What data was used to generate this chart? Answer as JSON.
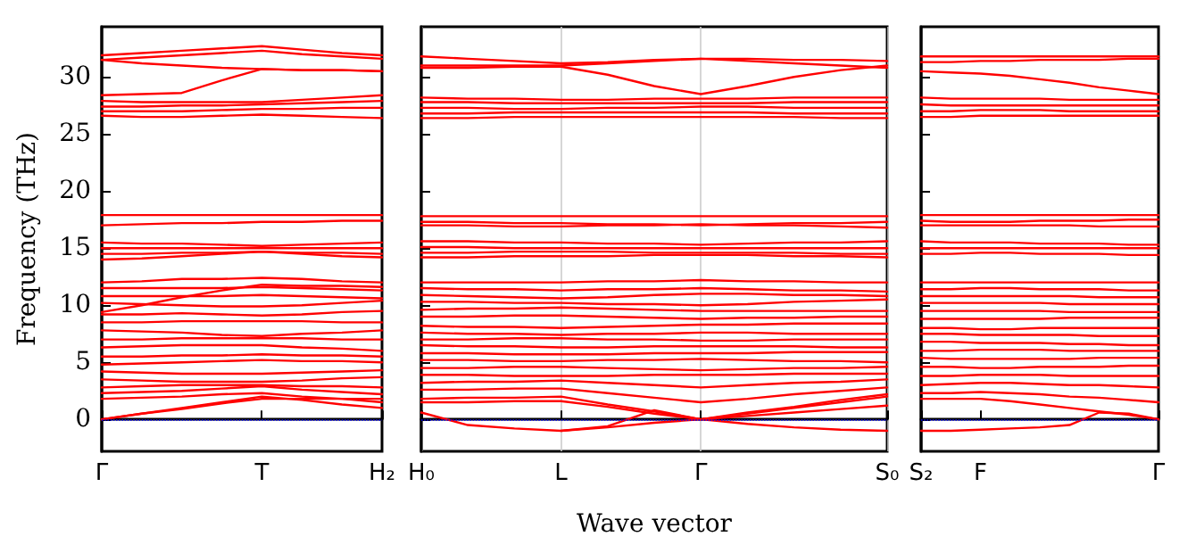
{
  "chart_data": [
    {
      "type": "line",
      "ylabel": "Frequency (THz)",
      "categories": [
        "Γ",
        null,
        null,
        null,
        "T",
        null,
        null,
        "H₂"
      ],
      "ylim": [
        -2.8,
        34.4
      ],
      "yticks": [
        0,
        5,
        10,
        15,
        20,
        25,
        30
      ],
      "marker": "none",
      "line_style": "solid",
      "ref_lines": [
        {
          "axis": "y",
          "value": 0,
          "color": "#0000ff",
          "line_style": "dotted"
        }
      ],
      "series": [
        {
          "color": "#ff0000",
          "values": [
            31.9,
            32.1,
            32.3,
            32.5,
            32.7,
            32.4,
            32.1,
            31.9
          ]
        },
        {
          "color": "#ff0000",
          "values": [
            31.5,
            31.7,
            31.9,
            32.1,
            32.3,
            32.0,
            31.8,
            31.6
          ]
        },
        {
          "color": "#ff0000",
          "values": [
            31.5,
            31.2,
            31.0,
            30.8,
            30.7,
            30.6,
            30.6,
            30.5
          ]
        },
        {
          "color": "#ff0000",
          "values": [
            28.4,
            28.5,
            28.6,
            29.7,
            30.7,
            30.6,
            30.6,
            30.5
          ]
        },
        {
          "color": "#ff0000",
          "values": [
            27.9,
            27.8,
            27.8,
            27.8,
            27.8,
            28.0,
            28.2,
            28.4
          ]
        },
        {
          "color": "#ff0000",
          "values": [
            27.4,
            27.4,
            27.5,
            27.5,
            27.6,
            27.7,
            27.8,
            27.9
          ]
        },
        {
          "color": "#ff0000",
          "values": [
            27.0,
            27.0,
            27.0,
            27.1,
            27.2,
            27.2,
            27.3,
            27.3
          ]
        },
        {
          "color": "#ff0000",
          "values": [
            26.6,
            26.5,
            26.5,
            26.6,
            26.7,
            26.6,
            26.5,
            26.4
          ]
        },
        {
          "color": "#ff0000",
          "values": [
            17.9,
            17.9,
            17.9,
            17.9,
            17.9,
            17.9,
            17.9,
            17.9
          ]
        },
        {
          "color": "#ff0000",
          "values": [
            17.0,
            17.1,
            17.2,
            17.2,
            17.3,
            17.3,
            17.4,
            17.4
          ]
        },
        {
          "color": "#ff0000",
          "values": [
            15.5,
            15.4,
            15.4,
            15.3,
            15.2,
            15.3,
            15.4,
            15.5
          ]
        },
        {
          "color": "#ff0000",
          "values": [
            15.0,
            15.0,
            15.0,
            15.0,
            15.0,
            15.0,
            15.0,
            15.0
          ]
        },
        {
          "color": "#ff0000",
          "values": [
            14.5,
            14.5,
            14.6,
            14.6,
            14.7,
            14.6,
            14.6,
            14.5
          ]
        },
        {
          "color": "#ff0000",
          "values": [
            14.0,
            14.1,
            14.3,
            14.5,
            14.7,
            14.5,
            14.3,
            14.2
          ]
        },
        {
          "color": "#ff0000",
          "values": [
            12.0,
            12.1,
            12.3,
            12.3,
            12.4,
            12.3,
            12.1,
            12.0
          ]
        },
        {
          "color": "#ff0000",
          "values": [
            11.5,
            11.5,
            11.5,
            11.5,
            11.6,
            11.5,
            11.4,
            11.3
          ]
        },
        {
          "color": "#ff0000",
          "values": [
            10.8,
            10.8,
            10.8,
            10.8,
            10.9,
            10.8,
            10.7,
            10.6
          ]
        },
        {
          "color": "#ff0000",
          "values": [
            10.2,
            10.1,
            10.0,
            9.9,
            9.9,
            10.0,
            10.2,
            10.4
          ]
        },
        {
          "color": "#ff0000",
          "values": [
            9.4,
            10.0,
            10.7,
            11.3,
            11.8,
            11.7,
            11.7,
            11.6
          ]
        },
        {
          "color": "#ff0000",
          "values": [
            9.2,
            9.2,
            9.3,
            9.2,
            9.1,
            9.2,
            9.4,
            9.5
          ]
        },
        {
          "color": "#ff0000",
          "values": [
            8.5,
            8.5,
            8.6,
            8.6,
            8.6,
            8.6,
            8.5,
            8.5
          ]
        },
        {
          "color": "#ff0000",
          "values": [
            7.8,
            7.7,
            7.6,
            7.4,
            7.3,
            7.5,
            7.6,
            7.8
          ]
        },
        {
          "color": "#ff0000",
          "values": [
            7.0,
            7.0,
            7.1,
            7.1,
            7.1,
            7.1,
            7.0,
            7.0
          ]
        },
        {
          "color": "#ff0000",
          "values": [
            6.3,
            6.4,
            6.5,
            6.5,
            6.5,
            6.3,
            6.2,
            6.0
          ]
        },
        {
          "color": "#ff0000",
          "values": [
            5.5,
            5.5,
            5.6,
            5.6,
            5.7,
            5.6,
            5.6,
            5.5
          ]
        },
        {
          "color": "#ff0000",
          "values": [
            4.8,
            4.9,
            5.0,
            5.1,
            5.2,
            5.1,
            5.1,
            5.0
          ]
        },
        {
          "color": "#ff0000",
          "values": [
            4.2,
            4.1,
            4.0,
            4.0,
            4.0,
            4.1,
            4.2,
            4.3
          ]
        },
        {
          "color": "#ff0000",
          "values": [
            3.5,
            3.4,
            3.3,
            3.3,
            3.3,
            3.4,
            3.6,
            3.7
          ]
        },
        {
          "color": "#ff0000",
          "values": [
            2.8,
            2.9,
            3.0,
            3.0,
            3.0,
            2.9,
            2.9,
            2.8
          ]
        },
        {
          "color": "#ff0000",
          "values": [
            2.3,
            2.4,
            2.5,
            2.7,
            2.9,
            2.6,
            2.4,
            2.2
          ]
        },
        {
          "color": "#ff0000",
          "values": [
            1.8,
            1.9,
            2.0,
            2.2,
            2.3,
            2.0,
            1.8,
            1.5
          ]
        },
        {
          "color": "#ff0000",
          "values": [
            0.0,
            0.5,
            1.0,
            1.5,
            2.0,
            1.7,
            1.3,
            1.0
          ]
        },
        {
          "color": "#ff0000",
          "values": [
            0.0,
            0.5,
            0.9,
            1.4,
            1.8,
            1.8,
            1.8,
            1.8
          ]
        }
      ]
    },
    {
      "type": "line",
      "xlabel": "Wave vector",
      "categories": [
        "H₀",
        null,
        null,
        "L",
        null,
        null,
        "Γ",
        null,
        null,
        null,
        "S₀"
      ],
      "ylim": [
        -2.8,
        34.4
      ],
      "yticks": [
        0,
        5,
        10,
        15,
        20,
        25,
        30
      ],
      "tick_labels": "x",
      "grid": "x",
      "marker": "none",
      "line_style": "solid",
      "ref_lines": [
        {
          "axis": "y",
          "value": 0,
          "color": "#0000ff",
          "line_style": "dotted"
        }
      ],
      "series": [
        {
          "color": "#ff0000",
          "values": [
            31.8,
            31.6,
            31.4,
            31.2,
            31.3,
            31.5,
            31.6,
            31.4,
            31.2,
            31.0,
            30.8
          ]
        },
        {
          "color": "#ff0000",
          "values": [
            31.0,
            31.0,
            31.0,
            31.0,
            31.2,
            31.4,
            31.6,
            31.6,
            31.5,
            31.5,
            31.4
          ]
        },
        {
          "color": "#ff0000",
          "values": [
            30.8,
            30.8,
            30.9,
            30.9,
            30.2,
            29.2,
            28.5,
            29.2,
            30.0,
            30.6,
            31.0
          ]
        },
        {
          "color": "#ff0000",
          "values": [
            28.2,
            28.1,
            28.1,
            28.0,
            28.0,
            28.1,
            28.1,
            28.1,
            28.2,
            28.2,
            28.2
          ]
        },
        {
          "color": "#ff0000",
          "values": [
            27.8,
            27.8,
            27.7,
            27.7,
            27.7,
            27.7,
            27.7,
            27.7,
            27.8,
            27.8,
            27.8
          ]
        },
        {
          "color": "#ff0000",
          "values": [
            27.3,
            27.3,
            27.2,
            27.2,
            27.3,
            27.3,
            27.4,
            27.4,
            27.3,
            27.3,
            27.3
          ]
        },
        {
          "color": "#ff0000",
          "values": [
            26.8,
            26.8,
            26.9,
            26.9,
            26.9,
            26.9,
            26.9,
            26.9,
            26.8,
            26.8,
            26.8
          ]
        },
        {
          "color": "#ff0000",
          "values": [
            26.4,
            26.4,
            26.5,
            26.5,
            26.5,
            26.5,
            26.5,
            26.5,
            26.5,
            26.4,
            26.4
          ]
        },
        {
          "color": "#ff0000",
          "values": [
            17.8,
            17.8,
            17.8,
            17.8,
            17.8,
            17.8,
            17.8,
            17.8,
            17.8,
            17.8,
            17.8
          ]
        },
        {
          "color": "#ff0000",
          "values": [
            17.3,
            17.3,
            17.2,
            17.2,
            17.1,
            17.1,
            17.0,
            17.1,
            17.2,
            17.2,
            17.3
          ]
        },
        {
          "color": "#ff0000",
          "values": [
            17.0,
            17.0,
            16.9,
            16.9,
            17.0,
            17.0,
            17.1,
            17.0,
            17.0,
            16.9,
            16.8
          ]
        },
        {
          "color": "#ff0000",
          "values": [
            15.6,
            15.6,
            15.5,
            15.5,
            15.4,
            15.4,
            15.3,
            15.4,
            15.5,
            15.5,
            15.6
          ]
        },
        {
          "color": "#ff0000",
          "values": [
            15.1,
            15.1,
            15.0,
            15.0,
            15.0,
            15.0,
            15.0,
            15.0,
            15.0,
            15.0,
            15.0
          ]
        },
        {
          "color": "#ff0000",
          "values": [
            14.6,
            14.6,
            14.7,
            14.7,
            14.7,
            14.6,
            14.6,
            14.6,
            14.6,
            14.5,
            14.5
          ]
        },
        {
          "color": "#ff0000",
          "values": [
            14.2,
            14.2,
            14.3,
            14.3,
            14.3,
            14.4,
            14.4,
            14.4,
            14.3,
            14.3,
            14.2
          ]
        },
        {
          "color": "#ff0000",
          "values": [
            12.0,
            12.0,
            12.0,
            12.0,
            12.1,
            12.1,
            12.2,
            12.1,
            12.1,
            12.0,
            12.0
          ]
        },
        {
          "color": "#ff0000",
          "values": [
            11.5,
            11.4,
            11.4,
            11.3,
            11.4,
            11.4,
            11.5,
            11.4,
            11.3,
            11.3,
            11.2
          ]
        },
        {
          "color": "#ff0000",
          "values": [
            10.9,
            10.8,
            10.7,
            10.6,
            10.7,
            10.9,
            11.0,
            11.0,
            10.9,
            10.9,
            10.8
          ]
        },
        {
          "color": "#ff0000",
          "values": [
            10.3,
            10.3,
            10.2,
            10.2,
            10.1,
            10.1,
            10.0,
            10.1,
            10.3,
            10.4,
            10.5
          ]
        },
        {
          "color": "#ff0000",
          "values": [
            9.6,
            9.7,
            9.7,
            9.8,
            9.7,
            9.6,
            9.5,
            9.5,
            9.5,
            9.5,
            9.5
          ]
        },
        {
          "color": "#ff0000",
          "values": [
            9.0,
            9.0,
            9.1,
            9.1,
            9.0,
            8.9,
            8.8,
            8.9,
            8.9,
            9.0,
            9.0
          ]
        },
        {
          "color": "#ff0000",
          "values": [
            8.2,
            8.1,
            8.1,
            8.0,
            8.1,
            8.2,
            8.3,
            8.3,
            8.4,
            8.4,
            8.4
          ]
        },
        {
          "color": "#ff0000",
          "values": [
            7.6,
            7.5,
            7.5,
            7.4,
            7.5,
            7.5,
            7.6,
            7.6,
            7.5,
            7.5,
            7.5
          ]
        },
        {
          "color": "#ff0000",
          "values": [
            7.0,
            7.0,
            7.1,
            7.1,
            7.0,
            7.0,
            6.9,
            6.9,
            7.0,
            7.0,
            7.0
          ]
        },
        {
          "color": "#ff0000",
          "values": [
            6.5,
            6.4,
            6.4,
            6.3,
            6.3,
            6.4,
            6.4,
            6.4,
            6.4,
            6.3,
            6.3
          ]
        },
        {
          "color": "#ff0000",
          "values": [
            5.8,
            5.8,
            5.7,
            5.7,
            5.7,
            5.8,
            5.8,
            5.8,
            5.9,
            5.9,
            5.9
          ]
        },
        {
          "color": "#ff0000",
          "values": [
            5.2,
            5.2,
            5.1,
            5.1,
            5.2,
            5.2,
            5.3,
            5.2,
            5.1,
            5.1,
            5.0
          ]
        },
        {
          "color": "#ff0000",
          "values": [
            4.5,
            4.5,
            4.6,
            4.6,
            4.5,
            4.4,
            4.3,
            4.4,
            4.5,
            4.5,
            4.6
          ]
        },
        {
          "color": "#ff0000",
          "values": [
            3.9,
            3.9,
            3.8,
            3.8,
            3.8,
            3.9,
            3.9,
            3.9,
            4.0,
            4.0,
            4.0
          ]
        },
        {
          "color": "#ff0000",
          "values": [
            3.2,
            3.3,
            3.3,
            3.4,
            3.2,
            3.0,
            2.8,
            3.0,
            3.2,
            3.3,
            3.5
          ]
        },
        {
          "color": "#ff0000",
          "values": [
            2.6,
            2.6,
            2.7,
            2.7,
            2.3,
            1.9,
            1.5,
            1.8,
            2.2,
            2.5,
            2.8
          ]
        },
        {
          "color": "#ff0000",
          "values": [
            1.8,
            1.9,
            1.9,
            2.0,
            1.3,
            0.7,
            0.0,
            0.6,
            1.1,
            1.7,
            2.2
          ]
        },
        {
          "color": "#ff0000",
          "values": [
            1.5,
            1.5,
            1.6,
            1.6,
            1.1,
            0.5,
            0.0,
            0.3,
            0.6,
            0.9,
            1.2
          ]
        },
        {
          "color": "#ff0000",
          "values": [
            0.6,
            -0.5,
            -0.8,
            -1.0,
            -0.7,
            -0.3,
            0.0,
            0.5,
            1.0,
            1.5,
            2.0
          ]
        },
        {
          "color": "#ff0000",
          "values": [
            null,
            null,
            null,
            -1.0,
            -0.6,
            0.8,
            0.0,
            -0.4,
            -0.7,
            -0.9,
            -1.0
          ]
        }
      ]
    },
    {
      "type": "line",
      "categories": [
        "S₂",
        null,
        "F",
        null,
        null,
        null,
        null,
        null,
        "Γ"
      ],
      "ylim": [
        -2.8,
        34.4
      ],
      "yticks": [
        0,
        5,
        10,
        15,
        20,
        25,
        30
      ],
      "tick_labels": "x",
      "marker": "none",
      "line_style": "solid",
      "ref_lines": [
        {
          "axis": "y",
          "value": 0,
          "color": "#0000ff",
          "line_style": "dotted"
        }
      ],
      "series": [
        {
          "color": "#ff0000",
          "values": [
            31.8,
            31.8,
            31.8,
            31.8,
            31.8,
            31.8,
            31.8,
            31.8,
            31.8
          ]
        },
        {
          "color": "#ff0000",
          "values": [
            31.3,
            31.3,
            31.4,
            31.4,
            31.5,
            31.5,
            31.5,
            31.6,
            31.6
          ]
        },
        {
          "color": "#ff0000",
          "values": [
            30.5,
            30.4,
            30.3,
            30.1,
            29.8,
            29.5,
            29.1,
            28.8,
            28.5
          ]
        },
        {
          "color": "#ff0000",
          "values": [
            28.2,
            28.1,
            28.1,
            28.1,
            28.1,
            28.0,
            28.0,
            28.0,
            28.0
          ]
        },
        {
          "color": "#ff0000",
          "values": [
            27.6,
            27.5,
            27.5,
            27.5,
            27.5,
            27.5,
            27.5,
            27.5,
            27.5
          ]
        },
        {
          "color": "#ff0000",
          "values": [
            27.0,
            27.0,
            27.1,
            27.1,
            27.1,
            27.0,
            27.0,
            27.0,
            27.0
          ]
        },
        {
          "color": "#ff0000",
          "values": [
            26.5,
            26.5,
            26.6,
            26.6,
            26.6,
            26.6,
            26.6,
            26.6,
            26.6
          ]
        },
        {
          "color": "#ff0000",
          "values": [
            17.9,
            17.9,
            17.9,
            17.9,
            17.9,
            17.9,
            17.9,
            17.9,
            17.9
          ]
        },
        {
          "color": "#ff0000",
          "values": [
            17.4,
            17.3,
            17.3,
            17.3,
            17.4,
            17.4,
            17.4,
            17.5,
            17.5
          ]
        },
        {
          "color": "#ff0000",
          "values": [
            17.0,
            17.0,
            17.0,
            17.0,
            17.0,
            17.0,
            16.9,
            16.9,
            16.9
          ]
        },
        {
          "color": "#ff0000",
          "values": [
            15.6,
            15.5,
            15.5,
            15.5,
            15.4,
            15.4,
            15.4,
            15.3,
            15.3
          ]
        },
        {
          "color": "#ff0000",
          "values": [
            15.0,
            15.0,
            15.0,
            15.0,
            15.0,
            15.0,
            15.0,
            15.0,
            15.0
          ]
        },
        {
          "color": "#ff0000",
          "values": [
            14.5,
            14.5,
            14.6,
            14.6,
            14.5,
            14.5,
            14.5,
            14.4,
            14.4
          ]
        },
        {
          "color": "#ff0000",
          "values": [
            12.0,
            12.0,
            12.0,
            12.0,
            12.0,
            12.0,
            12.0,
            12.0,
            12.0
          ]
        },
        {
          "color": "#ff0000",
          "values": [
            11.4,
            11.4,
            11.5,
            11.5,
            11.4,
            11.4,
            11.4,
            11.3,
            11.3
          ]
        },
        {
          "color": "#ff0000",
          "values": [
            10.8,
            10.8,
            10.8,
            10.8,
            10.8,
            10.8,
            10.7,
            10.7,
            10.7
          ]
        },
        {
          "color": "#ff0000",
          "values": [
            10.2,
            10.2,
            10.2,
            10.2,
            10.2,
            10.1,
            10.1,
            10.1,
            10.1
          ]
        },
        {
          "color": "#ff0000",
          "values": [
            9.5,
            9.5,
            9.5,
            9.5,
            9.5,
            9.4,
            9.4,
            9.4,
            9.4
          ]
        },
        {
          "color": "#ff0000",
          "values": [
            8.8,
            8.8,
            8.8,
            8.8,
            8.8,
            8.9,
            8.9,
            8.9,
            8.9
          ]
        },
        {
          "color": "#ff0000",
          "values": [
            8.0,
            8.0,
            7.9,
            7.9,
            8.0,
            8.0,
            8.0,
            8.0,
            8.0
          ]
        },
        {
          "color": "#ff0000",
          "values": [
            7.5,
            7.5,
            7.4,
            7.4,
            7.4,
            7.4,
            7.3,
            7.3,
            7.3
          ]
        },
        {
          "color": "#ff0000",
          "values": [
            6.8,
            6.8,
            6.7,
            6.7,
            6.7,
            6.6,
            6.6,
            6.5,
            6.5
          ]
        },
        {
          "color": "#ff0000",
          "values": [
            6.0,
            6.0,
            6.1,
            6.1,
            6.1,
            6.0,
            6.0,
            6.0,
            6.0
          ]
        },
        {
          "color": "#ff0000",
          "values": [
            5.4,
            5.3,
            5.3,
            5.3,
            5.3,
            5.3,
            5.4,
            5.4,
            5.4
          ]
        },
        {
          "color": "#ff0000",
          "values": [
            4.6,
            4.6,
            4.5,
            4.5,
            4.6,
            4.6,
            4.6,
            4.7,
            4.7
          ]
        },
        {
          "color": "#ff0000",
          "values": [
            3.8,
            3.8,
            3.9,
            3.9,
            3.9,
            3.8,
            3.8,
            3.8,
            3.8
          ]
        },
        {
          "color": "#ff0000",
          "values": [
            3.0,
            3.1,
            3.2,
            3.2,
            3.1,
            3.0,
            3.0,
            2.9,
            2.8
          ]
        },
        {
          "color": "#ff0000",
          "values": [
            2.3,
            2.3,
            2.4,
            2.3,
            2.2,
            2.0,
            1.9,
            1.7,
            1.5
          ]
        },
        {
          "color": "#ff0000",
          "values": [
            1.8,
            1.8,
            1.8,
            1.6,
            1.3,
            1.0,
            0.7,
            0.4,
            0.0
          ]
        },
        {
          "color": "#ff0000",
          "values": [
            -1.0,
            -1.0,
            -0.9,
            -0.8,
            -0.7,
            -0.5,
            0.6,
            0.5,
            0.0
          ]
        }
      ]
    }
  ]
}
